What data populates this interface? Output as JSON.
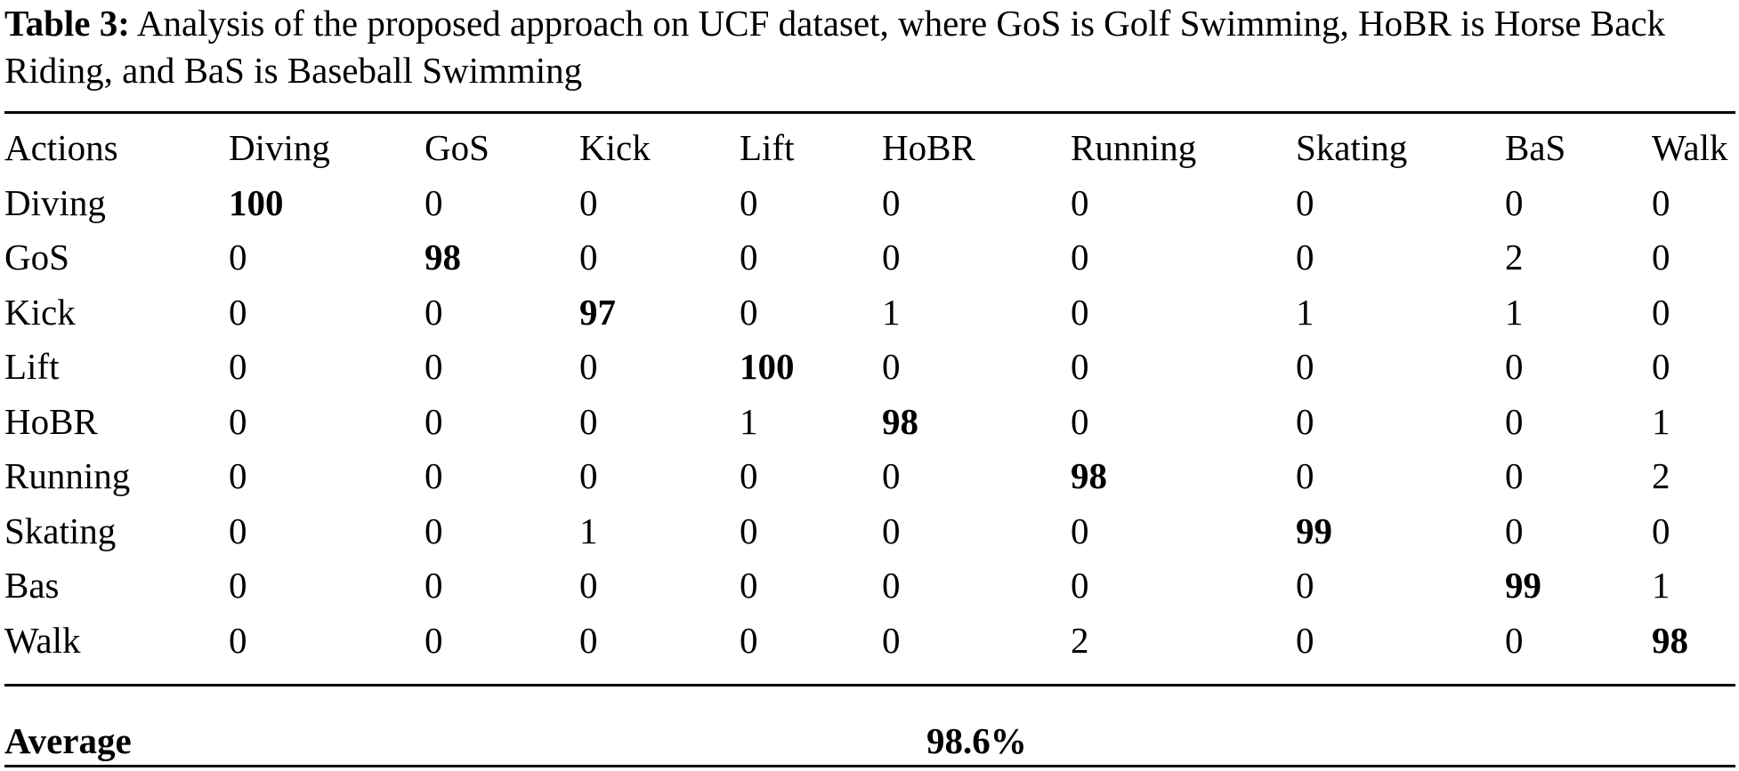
{
  "caption": {
    "label": "Table 3:",
    "text": " Analysis of the proposed approach on UCF dataset, where GoS is Golf Swimming, HoBR is Horse Back Riding, and BaS is Baseball Swimming"
  },
  "table": {
    "headers": [
      "Actions",
      "Diving",
      "GoS",
      "Kick",
      "Lift",
      "HoBR",
      "Running",
      "Skating",
      "BaS",
      "Walk"
    ],
    "rows": [
      {
        "label": "Diving",
        "values": [
          "100",
          "0",
          "0",
          "0",
          "0",
          "0",
          "0",
          "0",
          "0"
        ]
      },
      {
        "label": "GoS",
        "values": [
          "0",
          "98",
          "0",
          "0",
          "0",
          "0",
          "0",
          "2",
          "0"
        ]
      },
      {
        "label": "Kick",
        "values": [
          "0",
          "0",
          "97",
          "0",
          "1",
          "0",
          "1",
          "1",
          "0"
        ]
      },
      {
        "label": "Lift",
        "values": [
          "0",
          "0",
          "0",
          "100",
          "0",
          "0",
          "0",
          "0",
          "0"
        ]
      },
      {
        "label": "HoBR",
        "values": [
          "0",
          "0",
          "0",
          "1",
          "98",
          "0",
          "0",
          "0",
          "1"
        ]
      },
      {
        "label": "Running",
        "values": [
          "0",
          "0",
          "0",
          "0",
          "0",
          "98",
          "0",
          "0",
          "2"
        ]
      },
      {
        "label": "Skating",
        "values": [
          "0",
          "0",
          "1",
          "0",
          "0",
          "0",
          "99",
          "0",
          "0"
        ]
      },
      {
        "label": "Bas",
        "values": [
          "0",
          "0",
          "0",
          "0",
          "0",
          "0",
          "0",
          "99",
          "1"
        ]
      },
      {
        "label": "Walk",
        "values": [
          "0",
          "0",
          "0",
          "0",
          "0",
          "2",
          "0",
          "0",
          "98"
        ]
      }
    ]
  },
  "summary": {
    "label": "Average",
    "value": "98.6%"
  }
}
